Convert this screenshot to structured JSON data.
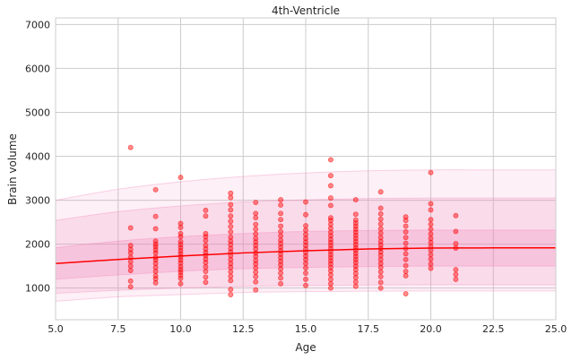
{
  "chart_data": {
    "type": "scatter",
    "title": "4th-Ventricle",
    "xlabel": "Age",
    "ylabel": "Brain volume",
    "xlim": [
      5.0,
      25.0
    ],
    "ylim": [
      280,
      7150
    ],
    "xticks": [
      5.0,
      7.5,
      10.0,
      12.5,
      15.0,
      17.5,
      20.0,
      22.5,
      25.0
    ],
    "xtick_labels": [
      "5.0",
      "7.5",
      "10.0",
      "12.5",
      "15.0",
      "17.5",
      "20.0",
      "22.5",
      "25.0"
    ],
    "yticks": [
      1000,
      2000,
      3000,
      4000,
      5000,
      6000,
      7000
    ],
    "ytick_labels": [
      "1000",
      "2000",
      "3000",
      "4000",
      "5000",
      "6000",
      "7000"
    ],
    "grid": true,
    "colors": {
      "points": "#ff0000",
      "median_line": "#ff0000",
      "bands": "#f080b8"
    },
    "centile_curves": {
      "x": [
        5,
        7.5,
        10,
        12.5,
        15,
        17.5,
        20,
        22.5,
        25
      ],
      "bands": [
        {
          "lower": [
            700,
            800,
            850,
            900,
            920,
            930,
            935,
            935,
            935
          ],
          "upper": [
            3000,
            3250,
            3420,
            3540,
            3620,
            3670,
            3690,
            3690,
            3690
          ],
          "opacity": 0.12
        },
        {
          "lower": [
            880,
            950,
            1000,
            1040,
            1060,
            1070,
            1075,
            1075,
            1075
          ],
          "upper": [
            2540,
            2740,
            2870,
            2960,
            3010,
            3040,
            3050,
            3050,
            3050
          ],
          "opacity": 0.18
        },
        {
          "lower": [
            1200,
            1300,
            1380,
            1440,
            1470,
            1490,
            1500,
            1500,
            1500
          ],
          "upper": [
            1920,
            2070,
            2170,
            2240,
            2290,
            2310,
            2320,
            2320,
            2320
          ],
          "opacity": 0.25
        }
      ],
      "median": [
        1560,
        1650,
        1730,
        1800,
        1850,
        1890,
        1910,
        1915,
        1915
      ]
    },
    "points": [
      [
        8,
        4200
      ],
      [
        8,
        2370
      ],
      [
        8,
        1970
      ],
      [
        8,
        1880
      ],
      [
        8,
        1800
      ],
      [
        8,
        1700
      ],
      [
        8,
        1600
      ],
      [
        8,
        1500
      ],
      [
        8,
        1400
      ],
      [
        8,
        1160
      ],
      [
        8,
        1030
      ],
      [
        9,
        3240
      ],
      [
        9,
        2630
      ],
      [
        9,
        2350
      ],
      [
        9,
        2070
      ],
      [
        9,
        2000
      ],
      [
        9,
        1940
      ],
      [
        9,
        1870
      ],
      [
        9,
        1800
      ],
      [
        9,
        1700
      ],
      [
        9,
        1640
      ],
      [
        9,
        1560
      ],
      [
        9,
        1470
      ],
      [
        9,
        1380
      ],
      [
        9,
        1280
      ],
      [
        9,
        1210
      ],
      [
        9,
        1120
      ],
      [
        10,
        3520
      ],
      [
        10,
        2470
      ],
      [
        10,
        2380
      ],
      [
        10,
        2240
      ],
      [
        10,
        2170
      ],
      [
        10,
        2060
      ],
      [
        10,
        1990
      ],
      [
        10,
        1920
      ],
      [
        10,
        1850
      ],
      [
        10,
        1780
      ],
      [
        10,
        1710
      ],
      [
        10,
        1640
      ],
      [
        10,
        1570
      ],
      [
        10,
        1490
      ],
      [
        10,
        1420
      ],
      [
        10,
        1360
      ],
      [
        10,
        1290
      ],
      [
        10,
        1220
      ],
      [
        10,
        1100
      ],
      [
        11,
        2770
      ],
      [
        11,
        2640
      ],
      [
        11,
        2240
      ],
      [
        11,
        2170
      ],
      [
        11,
        2080
      ],
      [
        11,
        1970
      ],
      [
        11,
        1890
      ],
      [
        11,
        1810
      ],
      [
        11,
        1740
      ],
      [
        11,
        1660
      ],
      [
        11,
        1580
      ],
      [
        11,
        1480
      ],
      [
        11,
        1380
      ],
      [
        11,
        1250
      ],
      [
        11,
        1130
      ],
      [
        12,
        3160
      ],
      [
        12,
        3060
      ],
      [
        12,
        2900
      ],
      [
        12,
        2780
      ],
      [
        12,
        2640
      ],
      [
        12,
        2520
      ],
      [
        12,
        2400
      ],
      [
        12,
        2280
      ],
      [
        12,
        2160
      ],
      [
        12,
        2070
      ],
      [
        12,
        1990
      ],
      [
        12,
        1900
      ],
      [
        12,
        1820
      ],
      [
        12,
        1740
      ],
      [
        12,
        1650
      ],
      [
        12,
        1560
      ],
      [
        12,
        1470
      ],
      [
        12,
        1370
      ],
      [
        12,
        1270
      ],
      [
        12,
        1170
      ],
      [
        12,
        970
      ],
      [
        12,
        850
      ],
      [
        13,
        2950
      ],
      [
        13,
        2700
      ],
      [
        13,
        2600
      ],
      [
        13,
        2450
      ],
      [
        13,
        2340
      ],
      [
        13,
        2230
      ],
      [
        13,
        2130
      ],
      [
        13,
        2050
      ],
      [
        13,
        1970
      ],
      [
        13,
        1890
      ],
      [
        13,
        1800
      ],
      [
        13,
        1720
      ],
      [
        13,
        1630
      ],
      [
        13,
        1550
      ],
      [
        13,
        1460
      ],
      [
        13,
        1360
      ],
      [
        13,
        1260
      ],
      [
        13,
        1140
      ],
      [
        13,
        960
      ],
      [
        14,
        3010
      ],
      [
        14,
        2890
      ],
      [
        14,
        2700
      ],
      [
        14,
        2560
      ],
      [
        14,
        2410
      ],
      [
        14,
        2290
      ],
      [
        14,
        2190
      ],
      [
        14,
        2090
      ],
      [
        14,
        2010
      ],
      [
        14,
        1930
      ],
      [
        14,
        1850
      ],
      [
        14,
        1770
      ],
      [
        14,
        1690
      ],
      [
        14,
        1610
      ],
      [
        14,
        1530
      ],
      [
        14,
        1440
      ],
      [
        14,
        1340
      ],
      [
        14,
        1230
      ],
      [
        14,
        1100
      ],
      [
        15,
        2960
      ],
      [
        15,
        2670
      ],
      [
        15,
        2420
      ],
      [
        15,
        2320
      ],
      [
        15,
        2220
      ],
      [
        15,
        2130
      ],
      [
        15,
        2050
      ],
      [
        15,
        1970
      ],
      [
        15,
        1890
      ],
      [
        15,
        1810
      ],
      [
        15,
        1730
      ],
      [
        15,
        1650
      ],
      [
        15,
        1560
      ],
      [
        15,
        1460
      ],
      [
        15,
        1340
      ],
      [
        15,
        1200
      ],
      [
        15,
        1060
      ],
      [
        16,
        3920
      ],
      [
        16,
        3560
      ],
      [
        16,
        3330
      ],
      [
        16,
        3050
      ],
      [
        16,
        2880
      ],
      [
        16,
        2600
      ],
      [
        16,
        2540
      ],
      [
        16,
        2450
      ],
      [
        16,
        2360
      ],
      [
        16,
        2270
      ],
      [
        16,
        2190
      ],
      [
        16,
        2110
      ],
      [
        16,
        2040
      ],
      [
        16,
        1970
      ],
      [
        16,
        1900
      ],
      [
        16,
        1830
      ],
      [
        16,
        1760
      ],
      [
        16,
        1690
      ],
      [
        16,
        1620
      ],
      [
        16,
        1550
      ],
      [
        16,
        1470
      ],
      [
        16,
        1390
      ],
      [
        16,
        1300
      ],
      [
        16,
        1200
      ],
      [
        16,
        1100
      ],
      [
        16,
        1000
      ],
      [
        17,
        3010
      ],
      [
        17,
        2680
      ],
      [
        17,
        2550
      ],
      [
        17,
        2480
      ],
      [
        17,
        2410
      ],
      [
        17,
        2340
      ],
      [
        17,
        2270
      ],
      [
        17,
        2200
      ],
      [
        17,
        2130
      ],
      [
        17,
        2060
      ],
      [
        17,
        1990
      ],
      [
        17,
        1920
      ],
      [
        17,
        1860
      ],
      [
        17,
        1790
      ],
      [
        17,
        1720
      ],
      [
        17,
        1650
      ],
      [
        17,
        1580
      ],
      [
        17,
        1500
      ],
      [
        17,
        1420
      ],
      [
        17,
        1330
      ],
      [
        17,
        1240
      ],
      [
        17,
        1140
      ],
      [
        17,
        1040
      ],
      [
        18,
        3190
      ],
      [
        18,
        2820
      ],
      [
        18,
        2690
      ],
      [
        18,
        2570
      ],
      [
        18,
        2460
      ],
      [
        18,
        2350
      ],
      [
        18,
        2250
      ],
      [
        18,
        2150
      ],
      [
        18,
        2060
      ],
      [
        18,
        1980
      ],
      [
        18,
        1900
      ],
      [
        18,
        1820
      ],
      [
        18,
        1740
      ],
      [
        18,
        1650
      ],
      [
        18,
        1560
      ],
      [
        18,
        1470
      ],
      [
        18,
        1370
      ],
      [
        18,
        1260
      ],
      [
        18,
        1130
      ],
      [
        18,
        1000
      ],
      [
        19,
        2620
      ],
      [
        19,
        2540
      ],
      [
        19,
        2410
      ],
      [
        19,
        2280
      ],
      [
        19,
        2150
      ],
      [
        19,
        2020
      ],
      [
        19,
        1900
      ],
      [
        19,
        1780
      ],
      [
        19,
        1650
      ],
      [
        19,
        1510
      ],
      [
        19,
        1380
      ],
      [
        19,
        1280
      ],
      [
        19,
        870
      ],
      [
        20,
        3630
      ],
      [
        20,
        2920
      ],
      [
        20,
        2780
      ],
      [
        20,
        2560
      ],
      [
        20,
        2450
      ],
      [
        20,
        2340
      ],
      [
        20,
        2230
      ],
      [
        20,
        2130
      ],
      [
        20,
        2040
      ],
      [
        20,
        1950
      ],
      [
        20,
        1860
      ],
      [
        20,
        1760
      ],
      [
        20,
        1660
      ],
      [
        20,
        1550
      ],
      [
        20,
        1450
      ],
      [
        21,
        2650
      ],
      [
        21,
        2290
      ],
      [
        21,
        2010
      ],
      [
        21,
        1910
      ],
      [
        21,
        1420
      ],
      [
        21,
        1310
      ],
      [
        21,
        1200
      ]
    ]
  }
}
